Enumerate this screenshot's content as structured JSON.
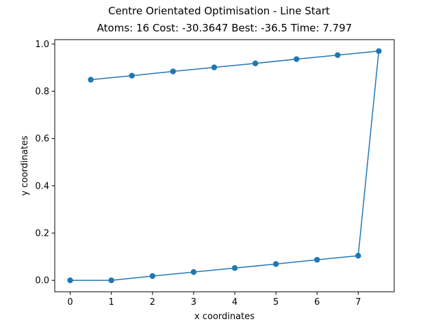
{
  "figure": {
    "suptitle": "Centre Orientated Optimisation - Line Start"
  },
  "chart_data": {
    "type": "line",
    "title": "Atoms: 16 Cost: -30.3647 Best: -36.5 Time: 7.797",
    "xlabel": "x coordinates",
    "ylabel": "y coordinates",
    "xlim": [
      -0.375,
      7.875
    ],
    "ylim": [
      -0.0485,
      1.0185
    ],
    "xticks": [
      0,
      1,
      2,
      3,
      4,
      5,
      6,
      7
    ],
    "xtick_labels": [
      "0",
      "1",
      "2",
      "3",
      "4",
      "5",
      "6",
      "7"
    ],
    "yticks": [
      0.0,
      0.2,
      0.4,
      0.6,
      0.8,
      1.0
    ],
    "ytick_labels": [
      "0.0",
      "0.2",
      "0.4",
      "0.6",
      "0.8",
      "1.0"
    ],
    "grid": false,
    "markers": true,
    "series": [
      {
        "color": "#1f77b4",
        "points": [
          {
            "x": 0.0,
            "y": 0.0
          },
          {
            "x": 1.0,
            "y": 0.0
          },
          {
            "x": 2.0,
            "y": 0.018
          },
          {
            "x": 3.0,
            "y": 0.035
          },
          {
            "x": 4.0,
            "y": 0.052
          },
          {
            "x": 5.0,
            "y": 0.069
          },
          {
            "x": 6.0,
            "y": 0.087
          },
          {
            "x": 7.0,
            "y": 0.104
          },
          {
            "x": 7.5,
            "y": 0.97
          },
          {
            "x": 6.5,
            "y": 0.953
          },
          {
            "x": 5.5,
            "y": 0.936
          },
          {
            "x": 4.5,
            "y": 0.918
          },
          {
            "x": 3.5,
            "y": 0.901
          },
          {
            "x": 2.5,
            "y": 0.884
          },
          {
            "x": 1.5,
            "y": 0.866
          },
          {
            "x": 0.5,
            "y": 0.849
          }
        ]
      }
    ]
  }
}
